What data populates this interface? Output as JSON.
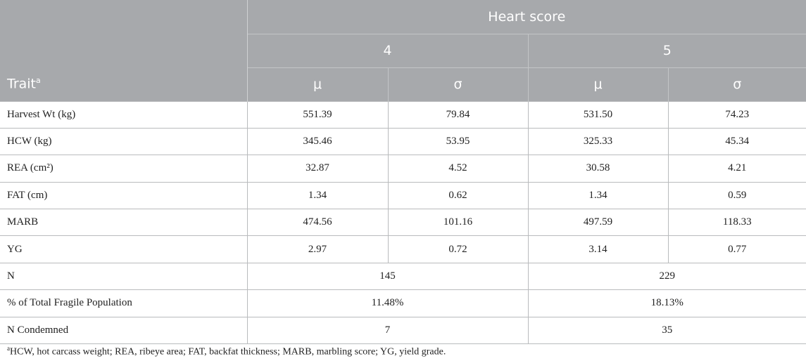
{
  "header": {
    "trait_label": "Trait",
    "trait_sup": "a",
    "group_label": "Heart score",
    "scores": [
      "4",
      "5"
    ],
    "stat_labels": [
      "μ",
      "σ",
      "μ",
      "σ"
    ]
  },
  "rows": [
    {
      "trait": "Harvest Wt (kg)",
      "s4_mu": "551.39",
      "s4_sigma": "79.84",
      "s5_mu": "531.50",
      "s5_sigma": "74.23"
    },
    {
      "trait": "HCW (kg)",
      "s4_mu": "345.46",
      "s4_sigma": "53.95",
      "s5_mu": "325.33",
      "s5_sigma": "45.34"
    },
    {
      "trait": "REA (cm²)",
      "s4_mu": "32.87",
      "s4_sigma": "4.52",
      "s5_mu": "30.58",
      "s5_sigma": "4.21"
    },
    {
      "trait": "FAT (cm)",
      "s4_mu": "1.34",
      "s4_sigma": "0.62",
      "s5_mu": "1.34",
      "s5_sigma": "0.59"
    },
    {
      "trait": "MARB",
      "s4_mu": "474.56",
      "s4_sigma": "101.16",
      "s5_mu": "497.59",
      "s5_sigma": "118.33"
    },
    {
      "trait": "YG",
      "s4_mu": "2.97",
      "s4_sigma": "0.72",
      "s5_mu": "3.14",
      "s5_sigma": "0.77"
    }
  ],
  "summary_rows": [
    {
      "label": "N",
      "s4": "145",
      "s5": "229"
    },
    {
      "label": "% of Total Fragile Population",
      "s4": "11.48%",
      "s5": "18.13%"
    },
    {
      "label": "N Condemned",
      "s4": "7",
      "s5": "35"
    }
  ],
  "footnote": {
    "marker": "a",
    "text": "HCW, hot carcass weight; REA, ribeye area; FAT, backfat thickness; MARB, marbling score; YG, yield grade."
  }
}
